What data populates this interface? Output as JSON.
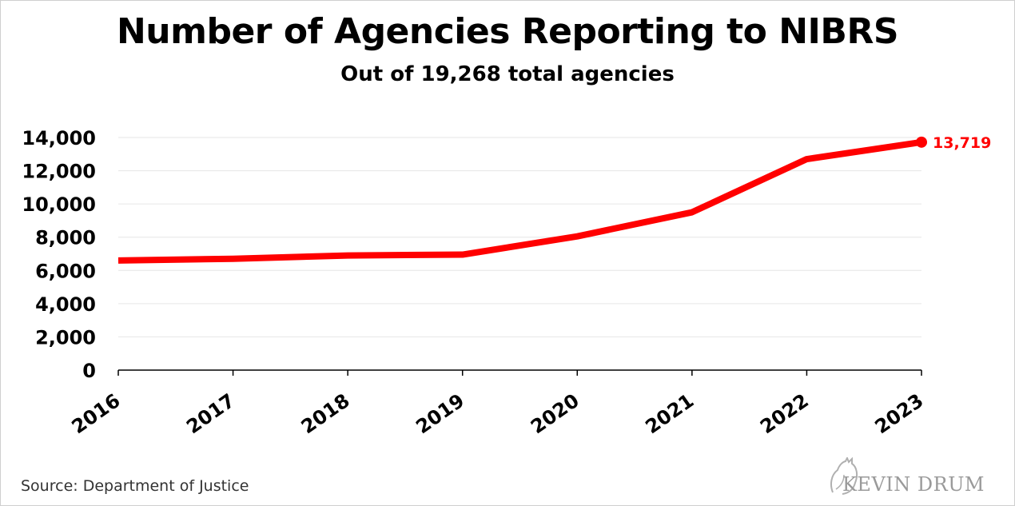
{
  "title": "Number of Agencies Reporting to NIBRS",
  "subtitle": "Out of 19,268 total agencies",
  "source": "Source: Department of Justice",
  "brand": "KEVIN DRUM",
  "colors": {
    "series": "#ff0000",
    "grid": "#e6e6e6",
    "axis": "#000000",
    "brand": "#9a9a9a"
  },
  "chart_data": {
    "type": "line",
    "title": "Number of Agencies Reporting to NIBRS",
    "subtitle": "Out of 19,268 total agencies",
    "x": [
      "2016",
      "2017",
      "2018",
      "2019",
      "2020",
      "2021",
      "2022",
      "2023"
    ],
    "series": [
      {
        "values": [
          6600,
          6700,
          6900,
          6950,
          8050,
          9500,
          12700,
          13719
        ]
      }
    ],
    "ylim": [
      0,
      14000
    ],
    "yticks": [
      0,
      2000,
      4000,
      6000,
      8000,
      10000,
      12000,
      14000
    ],
    "ytick_labels": [
      "0",
      "2,000",
      "4,000",
      "6,000",
      "8,000",
      "10,000",
      "12,000",
      "14,000"
    ],
    "end_label": "13,719",
    "grid": "horizontal",
    "xlabel": "",
    "ylabel": ""
  }
}
